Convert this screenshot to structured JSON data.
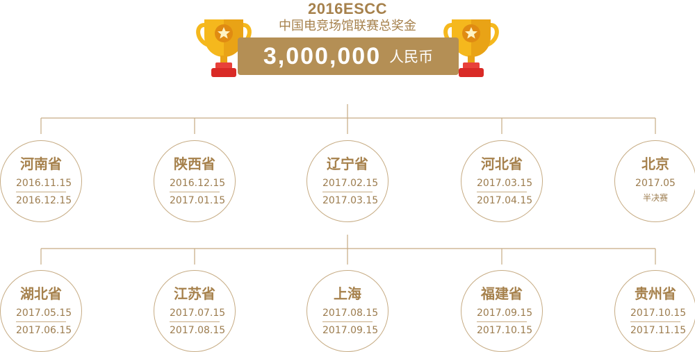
{
  "header": {
    "title": "2016ESCC",
    "subtitle": "中国电竞场馆联赛总奖金",
    "prize_amount": "3,000,000",
    "prize_unit": "人民币"
  },
  "colors": {
    "brand": "#a6814c",
    "banner": "#b48f55",
    "trophy_gold": "#f5b81d",
    "trophy_base": "#d92a26"
  },
  "icons": [
    "trophy-icon",
    "star-icon"
  ],
  "stages": [
    {
      "name": "河南省",
      "date_start": "2016.11.15",
      "date_end": "2016.12.15"
    },
    {
      "name": "陕西省",
      "date_start": "2016.12.15",
      "date_end": "2017.01.15"
    },
    {
      "name": "辽宁省",
      "date_start": "2017.02.15",
      "date_end": "2017.03.15"
    },
    {
      "name": "河北省",
      "date_start": "2017.03.15",
      "date_end": "2017.04.15"
    },
    {
      "name": "北京",
      "date_start": "2017.05",
      "date_end": "半决赛"
    },
    {
      "name": "湖北省",
      "date_start": "2017.05.15",
      "date_end": "2017.06.15"
    },
    {
      "name": "江苏省",
      "date_start": "2017.07.15",
      "date_end": "2017.08.15"
    },
    {
      "name": "上海",
      "date_start": "2017.08.15",
      "date_end": "2017.09.15"
    },
    {
      "name": "福建省",
      "date_start": "2017.09.15",
      "date_end": "2017.10.15"
    },
    {
      "name": "贵州省",
      "date_start": "2017.10.15",
      "date_end": "2017.11.15"
    }
  ]
}
